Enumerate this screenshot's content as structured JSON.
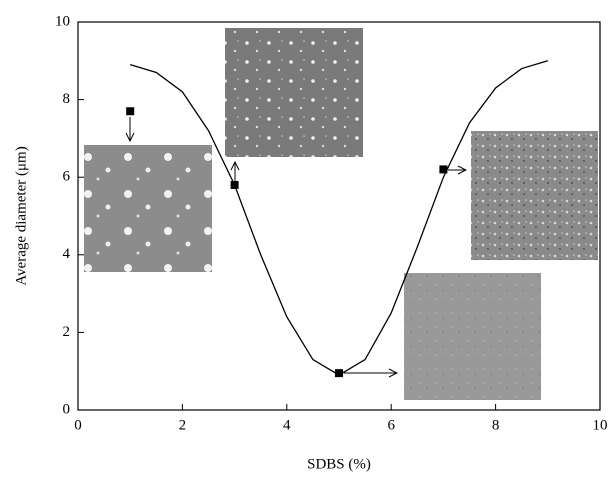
{
  "chart_data": {
    "type": "scatter",
    "xlabel": "SDBS (%)",
    "ylabel": "Average diameter (μm)",
    "x": [
      1,
      3,
      5,
      7
    ],
    "values": [
      7.7,
      5.8,
      0.95,
      6.2
    ],
    "color": "#000000",
    "curve": {
      "x": [
        1,
        1.5,
        2,
        2.5,
        3,
        3.5,
        4,
        4.5,
        5,
        5.5,
        6,
        6.5,
        7,
        7.5,
        8,
        8.5,
        9
      ],
      "values": [
        8.9,
        8.7,
        8.2,
        7.2,
        5.8,
        4.0,
        2.4,
        1.3,
        0.9,
        1.3,
        2.5,
        4.2,
        6.0,
        7.4,
        8.3,
        8.8,
        9.0
      ]
    },
    "xlim": [
      0,
      10
    ],
    "ylim": [
      0,
      10
    ],
    "xticks": [
      0,
      2,
      4,
      6,
      8,
      10
    ],
    "yticks": [
      0,
      2,
      4,
      6,
      8,
      10
    ]
  }
}
